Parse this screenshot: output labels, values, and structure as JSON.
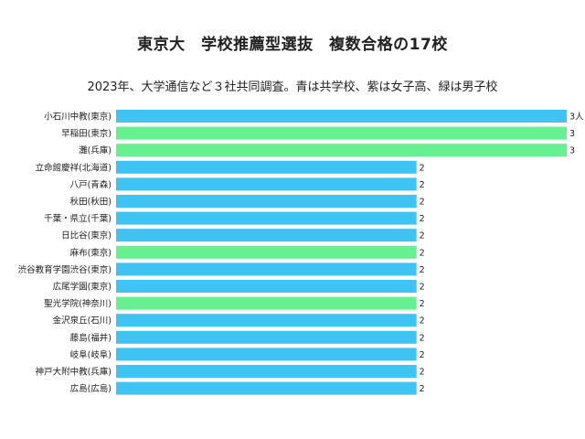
{
  "chart_data": {
    "type": "bar",
    "orientation": "horizontal",
    "title": "東京大　学校推薦型選抜　複数合格の17校",
    "subtitle": "2023年、大学通信など３社共同調査。青は共学校、紫は女子高、緑は男子校",
    "categories": [
      "小石川中教(東京)",
      "早稲田(東京)",
      "灘(兵庫)",
      "立命館慶祥(北海道)",
      "八戸(青森)",
      "秋田(秋田)",
      "千葉・県立(千葉)",
      "日比谷(東京)",
      "麻布(東京)",
      "渋谷教育学園渋谷(東京)",
      "広尾学園(東京)",
      "聖光学院(神奈川)",
      "金沢泉丘(石川)",
      "藤島(福井)",
      "岐阜(岐阜)",
      "神戸大附中教(兵庫)",
      "広島(広島)"
    ],
    "values": [
      3,
      3,
      3,
      2,
      2,
      2,
      2,
      2,
      2,
      2,
      2,
      2,
      2,
      2,
      2,
      2,
      2
    ],
    "value_labels": [
      "3人",
      "3",
      "3",
      "2",
      "2",
      "2",
      "2",
      "2",
      "2",
      "2",
      "2",
      "2",
      "2",
      "2",
      "2",
      "2",
      "2"
    ],
    "school_type": [
      "coed",
      "boys",
      "boys",
      "coed",
      "coed",
      "coed",
      "coed",
      "coed",
      "boys",
      "coed",
      "coed",
      "boys",
      "coed",
      "coed",
      "coed",
      "coed",
      "coed"
    ],
    "colors": {
      "coed": "#3ec3f3",
      "girls": "#b38ee0",
      "boys": "#66f08f"
    },
    "xlim": [
      0,
      3
    ],
    "grid": false,
    "legend": "none"
  }
}
